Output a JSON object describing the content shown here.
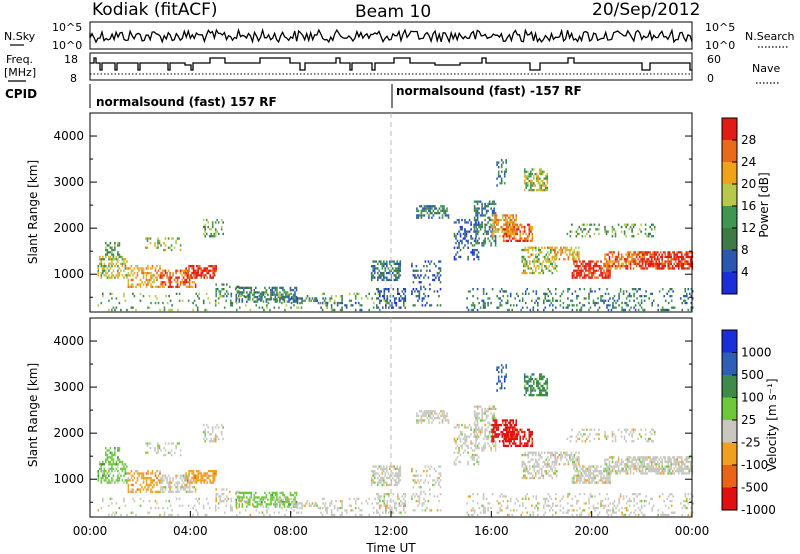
{
  "header": {
    "title_left": "Kodiak (fitACF)",
    "title_center": "Beam 10",
    "title_right": "20/Sep/2012"
  },
  "status_panels": {
    "nsky_label": "N.Sky",
    "nsky_ticks": [
      "10^5",
      "10^0"
    ],
    "nsearch_label": "N.Search",
    "nsearch_ticks": [
      "10^5",
      "10^0"
    ],
    "freq_label_line1": "Freq.",
    "freq_label_line2": "[MHz]",
    "freq_ticks": [
      "18",
      "8"
    ],
    "nave_label": "Nave",
    "nave_ticks": [
      "60",
      "0"
    ],
    "cpid_label": "CPID",
    "cpid_segments": [
      "normalsound (fast) 157 RF",
      "normalsound (fast) -157 RF"
    ]
  },
  "chart_data": [
    {
      "type": "heatmap",
      "name": "power-panel",
      "ylabel": "Slant Range [km]",
      "yticks": [
        "1000",
        "2000",
        "3000",
        "4000"
      ],
      "ylim": [
        180,
        4500
      ],
      "xlim": [
        0,
        24
      ],
      "colorbar": {
        "label": "Power [dB]",
        "ticks": [
          "4",
          "8",
          "12",
          "16",
          "20",
          "24",
          "28"
        ],
        "range": [
          0,
          32
        ],
        "colors": [
          "#1a2fd8",
          "#2a58b0",
          "#3f7a46",
          "#3e9650",
          "#b7c84a",
          "#f0a218",
          "#ea6a1c",
          "#e01c14"
        ]
      }
    },
    {
      "type": "heatmap",
      "name": "velocity-panel",
      "ylabel": "Slant Range [km]",
      "yticks": [
        "1000",
        "2000",
        "3000",
        "4000"
      ],
      "ylim": [
        180,
        4500
      ],
      "xlim": [
        0,
        24
      ],
      "xlabel": "Time UT",
      "xticks": [
        "00:00",
        "04:00",
        "08:00",
        "12:00",
        "16:00",
        "20:00",
        "00:00"
      ],
      "colorbar": {
        "label": "Velocity [m s⁻¹]",
        "ticks": [
          "1000",
          "500",
          "100",
          "25",
          "-25",
          "-100",
          "-500",
          "-1000"
        ],
        "colors": [
          "#1a2fd8",
          "#2f5fb4",
          "#3d8a4a",
          "#6ec83c",
          "#c8c8c0",
          "#f0a020",
          "#ea6418",
          "#e01010"
        ]
      }
    }
  ]
}
